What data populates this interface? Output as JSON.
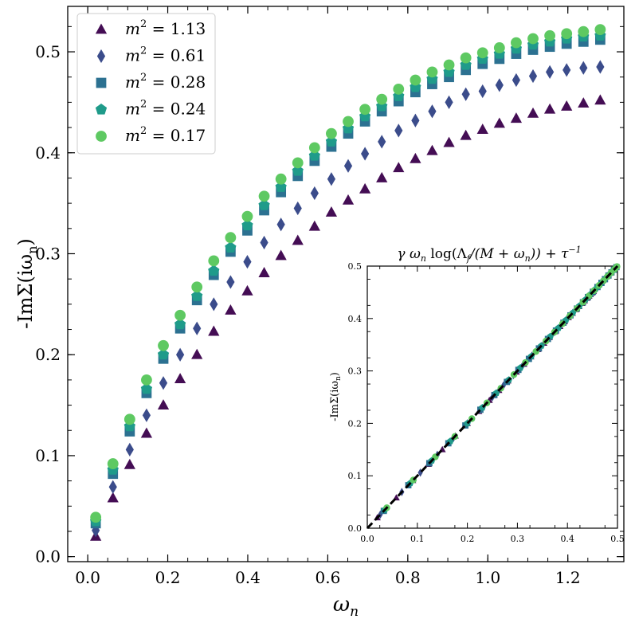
{
  "chart_data": [
    {
      "type": "scatter",
      "xlabel": "ω",
      "xlabel_sub": "n",
      "ylabel": "-ImΣ(iω",
      "ylabel_sub": "n",
      "ylabel_close": ")",
      "xlim": [
        -0.05,
        1.34
      ],
      "ylim": [
        -0.005,
        0.545
      ],
      "xticks": [
        0.0,
        0.2,
        0.4,
        0.6,
        0.8,
        1.0,
        1.2
      ],
      "xtick_labels": [
        "0.0",
        "0.2",
        "0.4",
        "0.6",
        "0.8",
        "1.0",
        "1.2"
      ],
      "yticks": [
        0.0,
        0.1,
        0.2,
        0.3,
        0.4,
        0.5
      ],
      "ytick_labels": [
        "0.0",
        "0.1",
        "0.2",
        "0.3",
        "0.4",
        "0.5"
      ],
      "legend_position": "top-left",
      "x": [
        0.02,
        0.063,
        0.105,
        0.147,
        0.189,
        0.231,
        0.273,
        0.315,
        0.357,
        0.399,
        0.441,
        0.483,
        0.525,
        0.567,
        0.609,
        0.651,
        0.693,
        0.735,
        0.777,
        0.819,
        0.861,
        0.903,
        0.945,
        0.987,
        1.029,
        1.071,
        1.113,
        1.155,
        1.197,
        1.239,
        1.281
      ],
      "series": [
        {
          "name": "m² = 1.13",
          "label_main": "m",
          "label_sup": "2",
          "label_rest": " = 1.13",
          "marker": "triangle",
          "color": "#440d54",
          "values": [
            0.02,
            0.058,
            0.091,
            0.122,
            0.15,
            0.176,
            0.2,
            0.223,
            0.244,
            0.263,
            0.281,
            0.298,
            0.313,
            0.327,
            0.341,
            0.353,
            0.364,
            0.375,
            0.385,
            0.394,
            0.402,
            0.41,
            0.417,
            0.423,
            0.429,
            0.434,
            0.439,
            0.443,
            0.446,
            0.449,
            0.452
          ]
        },
        {
          "name": "m² = 0.61",
          "label_main": "m",
          "label_sup": "2",
          "label_rest": " = 0.61",
          "marker": "diamond",
          "color": "#3b4c8b",
          "values": [
            0.026,
            0.069,
            0.106,
            0.14,
            0.172,
            0.2,
            0.226,
            0.25,
            0.272,
            0.292,
            0.311,
            0.329,
            0.345,
            0.36,
            0.374,
            0.387,
            0.399,
            0.411,
            0.422,
            0.432,
            0.441,
            0.45,
            0.458,
            0.461,
            0.467,
            0.472,
            0.476,
            0.48,
            0.482,
            0.484,
            0.485
          ]
        },
        {
          "name": "m² = 0.28",
          "label_main": "m",
          "label_sup": "2",
          "label_rest": " = 0.28",
          "marker": "square",
          "color": "#2c7191",
          "values": [
            0.033,
            0.082,
            0.124,
            0.162,
            0.196,
            0.226,
            0.254,
            0.279,
            0.302,
            0.323,
            0.343,
            0.361,
            0.377,
            0.392,
            0.406,
            0.419,
            0.431,
            0.441,
            0.451,
            0.46,
            0.468,
            0.475,
            0.482,
            0.488,
            0.493,
            0.498,
            0.502,
            0.505,
            0.508,
            0.51,
            0.512
          ]
        },
        {
          "name": "m² = 0.24",
          "label_main": "m",
          "label_sup": "2",
          "label_rest": " = 0.24",
          "marker": "pentagon",
          "color": "#1f9b8a",
          "values": [
            0.035,
            0.086,
            0.129,
            0.166,
            0.2,
            0.23,
            0.258,
            0.283,
            0.306,
            0.328,
            0.348,
            0.366,
            0.382,
            0.397,
            0.411,
            0.424,
            0.436,
            0.446,
            0.456,
            0.465,
            0.473,
            0.48,
            0.487,
            0.493,
            0.498,
            0.503,
            0.507,
            0.51,
            0.513,
            0.515,
            0.516
          ]
        },
        {
          "name": "m² = 0.17",
          "label_main": "m",
          "label_sup": "2",
          "label_rest": " = 0.17",
          "marker": "circle",
          "color": "#5ec962",
          "values": [
            0.039,
            0.092,
            0.136,
            0.175,
            0.209,
            0.239,
            0.267,
            0.293,
            0.316,
            0.337,
            0.357,
            0.374,
            0.39,
            0.405,
            0.419,
            0.431,
            0.443,
            0.453,
            0.463,
            0.472,
            0.48,
            0.487,
            0.494,
            0.499,
            0.504,
            0.509,
            0.513,
            0.516,
            0.518,
            0.52,
            0.522
          ]
        }
      ]
    },
    {
      "type": "scatter",
      "title": "γ ω",
      "title_sub": "n",
      "title_rest": " log(Λ",
      "title_sub2": "f",
      "title_rest2": "/(M + ω",
      "title_sub3": "n",
      "title_rest3": ")) + τ",
      "title_sup": "−1",
      "ylabel": "-ImΣ(iω",
      "ylabel_sub": "n",
      "ylabel_close": ")",
      "xlim": [
        0.0,
        0.5
      ],
      "ylim": [
        0.0,
        0.5
      ],
      "xticks": [
        0.0,
        0.1,
        0.2,
        0.3,
        0.4,
        0.5
      ],
      "xtick_labels": [
        "0.0",
        "0.1",
        "0.2",
        "0.3",
        "0.4",
        "0.5"
      ],
      "yticks": [
        0.0,
        0.1,
        0.2,
        0.3,
        0.4,
        0.5
      ],
      "ytick_labels": [
        "0.0",
        "0.1",
        "0.2",
        "0.3",
        "0.4",
        "0.5"
      ],
      "reference_line": {
        "style": "dashed",
        "color": "#000000",
        "from": [
          0.0,
          0.0
        ],
        "to": [
          0.5,
          0.5
        ]
      },
      "note": "collapsed data from all five series lie on the diagonal"
    }
  ]
}
